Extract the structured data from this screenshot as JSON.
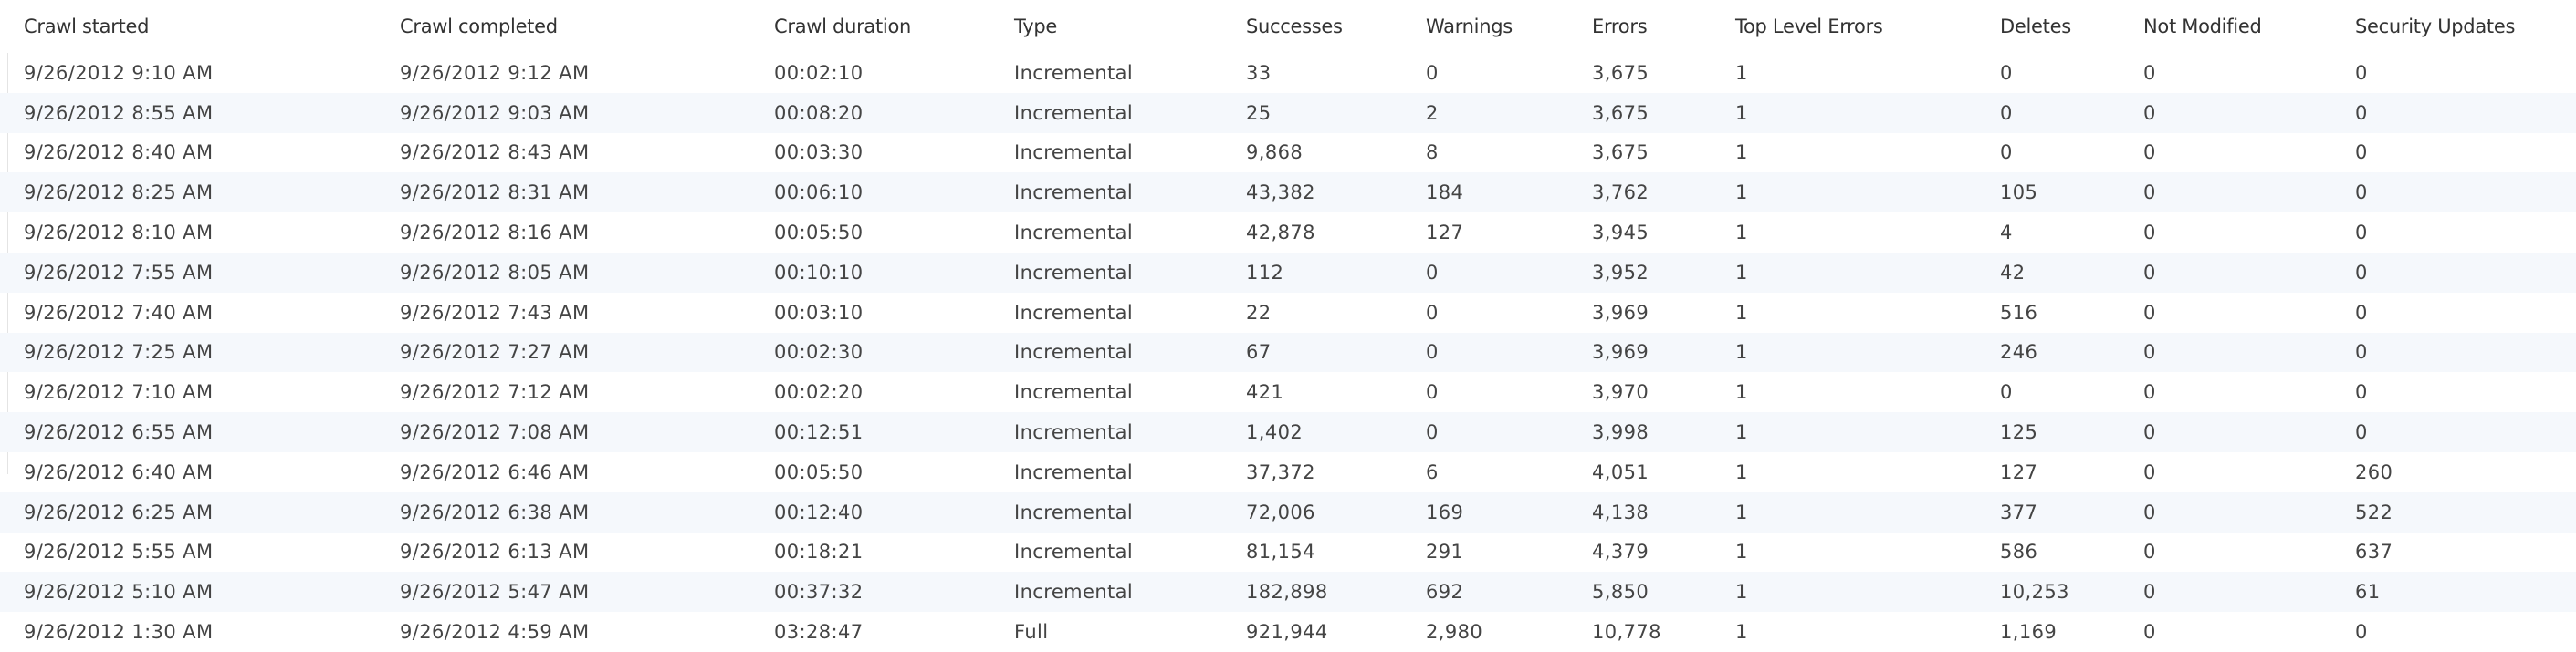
{
  "columns": [
    "Crawl started",
    "Crawl completed",
    "Crawl duration",
    "Type",
    "Successes",
    "Warnings",
    "Errors",
    "Top Level Errors",
    "Deletes",
    "Not Modified",
    "Security Updates"
  ],
  "rows": [
    [
      "9/26/2012 9:10 AM",
      "9/26/2012 9:12 AM",
      "00:02:10",
      "Incremental",
      "33",
      "0",
      "3,675",
      "1",
      "0",
      "0",
      "0"
    ],
    [
      "9/26/2012 8:55 AM",
      "9/26/2012 9:03 AM",
      "00:08:20",
      "Incremental",
      "25",
      "2",
      "3,675",
      "1",
      "0",
      "0",
      "0"
    ],
    [
      "9/26/2012 8:40 AM",
      "9/26/2012 8:43 AM",
      "00:03:30",
      "Incremental",
      "9,868",
      "8",
      "3,675",
      "1",
      "0",
      "0",
      "0"
    ],
    [
      "9/26/2012 8:25 AM",
      "9/26/2012 8:31 AM",
      "00:06:10",
      "Incremental",
      "43,382",
      "184",
      "3,762",
      "1",
      "105",
      "0",
      "0"
    ],
    [
      "9/26/2012 8:10 AM",
      "9/26/2012 8:16 AM",
      "00:05:50",
      "Incremental",
      "42,878",
      "127",
      "3,945",
      "1",
      "4",
      "0",
      "0"
    ],
    [
      "9/26/2012 7:55 AM",
      "9/26/2012 8:05 AM",
      "00:10:10",
      "Incremental",
      "112",
      "0",
      "3,952",
      "1",
      "42",
      "0",
      "0"
    ],
    [
      "9/26/2012 7:40 AM",
      "9/26/2012 7:43 AM",
      "00:03:10",
      "Incremental",
      "22",
      "0",
      "3,969",
      "1",
      "516",
      "0",
      "0"
    ],
    [
      "9/26/2012 7:25 AM",
      "9/26/2012 7:27 AM",
      "00:02:30",
      "Incremental",
      "67",
      "0",
      "3,969",
      "1",
      "246",
      "0",
      "0"
    ],
    [
      "9/26/2012 7:10 AM",
      "9/26/2012 7:12 AM",
      "00:02:20",
      "Incremental",
      "421",
      "0",
      "3,970",
      "1",
      "0",
      "0",
      "0"
    ],
    [
      "9/26/2012 6:55 AM",
      "9/26/2012 7:08 AM",
      "00:12:51",
      "Incremental",
      "1,402",
      "0",
      "3,998",
      "1",
      "125",
      "0",
      "0"
    ],
    [
      "9/26/2012 6:40 AM",
      "9/26/2012 6:46 AM",
      "00:05:50",
      "Incremental",
      "37,372",
      "6",
      "4,051",
      "1",
      "127",
      "0",
      "260"
    ],
    [
      "9/26/2012 6:25 AM",
      "9/26/2012 6:38 AM",
      "00:12:40",
      "Incremental",
      "72,006",
      "169",
      "4,138",
      "1",
      "377",
      "0",
      "522"
    ],
    [
      "9/26/2012 5:55 AM",
      "9/26/2012 6:13 AM",
      "00:18:21",
      "Incremental",
      "81,154",
      "291",
      "4,379",
      "1",
      "586",
      "0",
      "637"
    ],
    [
      "9/26/2012 5:10 AM",
      "9/26/2012 5:47 AM",
      "00:37:32",
      "Incremental",
      "182,898",
      "692",
      "5,850",
      "1",
      "10,253",
      "0",
      "61"
    ],
    [
      "9/26/2012 1:30 AM",
      "9/26/2012 4:59 AM",
      "03:28:47",
      "Full",
      "921,944",
      "2,980",
      "10,778",
      "1",
      "1,169",
      "0",
      "0"
    ]
  ],
  "colors": {
    "alt_row_background": "#f5f8fc",
    "text": "#444444",
    "header_text": "#333333"
  }
}
